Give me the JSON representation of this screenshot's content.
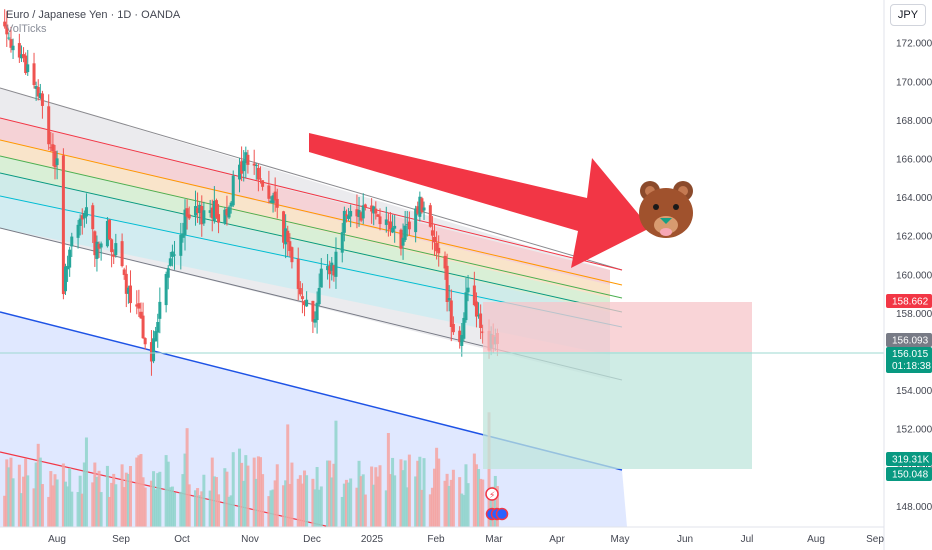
{
  "header": {
    "title": "Euro / Japanese Yen · 1D · OANDA",
    "subtitle": "VolTicks"
  },
  "currency_button": "JPY",
  "chart_data": {
    "type": "candlestick",
    "x_axis_ticks": [
      "Aug",
      "Sep",
      "Oct",
      "Nov",
      "Dec",
      "2025",
      "Feb",
      "Mar",
      "Apr",
      "May",
      "Jun",
      "Jul",
      "Aug",
      "Sep"
    ],
    "y_axis_ticks": [
      "148.000",
      "150.000",
      "152.000",
      "154.000",
      "156.000",
      "158.000",
      "160.000",
      "162.000",
      "164.000",
      "166.000",
      "168.000",
      "170.000",
      "172.000"
    ],
    "ylim": [
      147.5,
      173.5
    ],
    "colors": {
      "up": "#26a69a",
      "down": "#ef5350",
      "arrow": "#f23645",
      "channel_blue": "#1e53e5"
    },
    "price_path": [
      [
        "2024-07-01",
        173.8
      ],
      [
        "2024-07-04",
        173.2
      ],
      [
        "2024-07-10",
        172.0
      ],
      [
        "2024-07-15",
        171.5
      ],
      [
        "2024-07-20",
        170.6
      ],
      [
        "2024-07-25",
        169.0
      ],
      [
        "2024-07-29",
        167.1
      ],
      [
        "2024-08-02",
        165.5
      ],
      [
        "2024-08-05",
        158.9
      ],
      [
        "2024-08-07",
        161.0
      ],
      [
        "2024-08-12",
        162.2
      ],
      [
        "2024-08-16",
        163.4
      ],
      [
        "2024-08-20",
        161.5
      ],
      [
        "2024-08-26",
        162.2
      ],
      [
        "2024-09-01",
        160.5
      ],
      [
        "2024-09-06",
        158.5
      ],
      [
        "2024-09-12",
        157.3
      ],
      [
        "2024-09-16",
        155.6
      ],
      [
        "2024-09-20",
        158.5
      ],
      [
        "2024-09-26",
        161.0
      ],
      [
        "2024-10-02",
        162.8
      ],
      [
        "2024-10-08",
        163.0
      ],
      [
        "2024-10-14",
        163.5
      ],
      [
        "2024-10-20",
        162.9
      ],
      [
        "2024-10-26",
        165.0
      ],
      [
        "2024-10-31",
        166.0
      ],
      [
        "2024-11-04",
        165.8
      ],
      [
        "2024-11-08",
        164.5
      ],
      [
        "2024-11-14",
        163.7
      ],
      [
        "2024-11-20",
        161.5
      ],
      [
        "2024-11-26",
        159.5
      ],
      [
        "2024-12-02",
        157.5
      ],
      [
        "2024-12-06",
        160.0
      ],
      [
        "2024-12-12",
        160.5
      ],
      [
        "2024-12-18",
        163.5
      ],
      [
        "2024-12-24",
        163.3
      ],
      [
        "2024-12-30",
        163.7
      ],
      [
        "2025-01-03",
        163.0
      ],
      [
        "2025-01-08",
        162.5
      ],
      [
        "2025-01-13",
        161.5
      ],
      [
        "2025-01-17",
        162.5
      ],
      [
        "2025-01-22",
        163.8
      ],
      [
        "2025-01-27",
        162.5
      ],
      [
        "2025-02-01",
        161.2
      ],
      [
        "2025-02-06",
        157.8
      ],
      [
        "2025-02-10",
        156.5
      ],
      [
        "2025-02-14",
        159.5
      ],
      [
        "2025-02-18",
        158.3
      ],
      [
        "2025-02-23",
        156.6
      ],
      [
        "2025-02-27",
        156.3
      ],
      [
        "2025-03-01",
        156.0
      ]
    ],
    "price_labels": {
      "stop": "158.662",
      "previous": "156.093",
      "last": "156.015",
      "countdown": "01:18:38",
      "volume": "319.31K",
      "target": "150.048"
    }
  },
  "annotations": {
    "bear_emoji": "🐻"
  }
}
